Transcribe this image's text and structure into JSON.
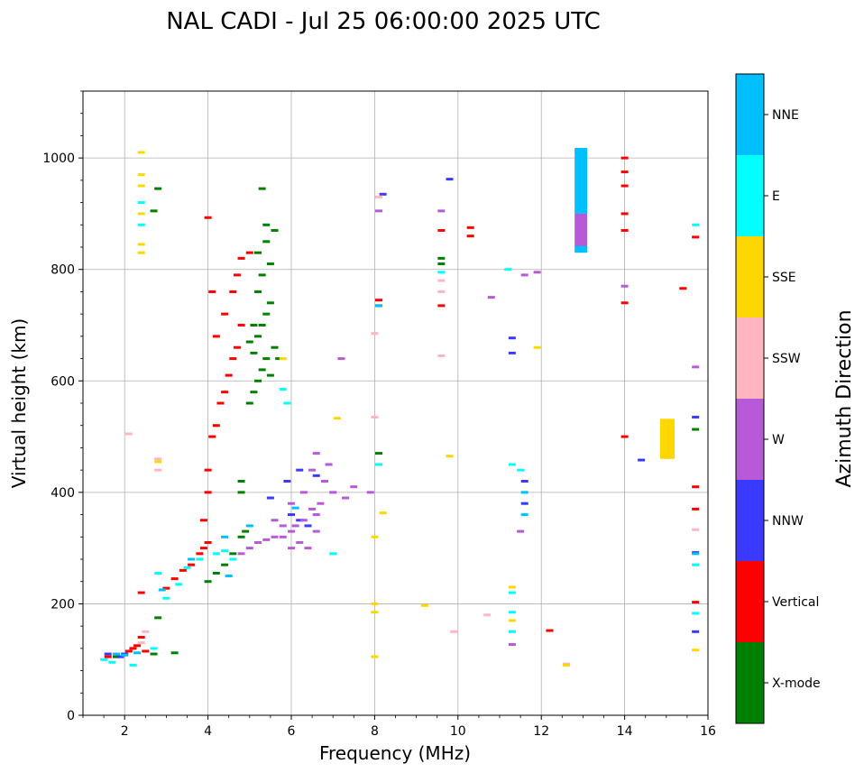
{
  "chart_data": {
    "type": "scatter",
    "title": "NAL CADI - Jul 25 06:00:00 2025 UTC",
    "xlabel": "Frequency (MHz)",
    "ylabel": "Virtual height (km)",
    "xlim": [
      1,
      16
    ],
    "ylim": [
      0,
      1120
    ],
    "xticks": [
      2,
      4,
      6,
      8,
      10,
      12,
      14,
      16
    ],
    "yticks": [
      0,
      200,
      400,
      600,
      800,
      1000
    ],
    "grid": true,
    "colorbar": {
      "title": "Azimuth Direction",
      "categories": [
        {
          "name": "X-mode",
          "color": "#008000"
        },
        {
          "name": "Vertical",
          "color": "#ff0000"
        },
        {
          "name": "NNW",
          "color": "#3a3aff"
        },
        {
          "name": "W",
          "color": "#b65ad8"
        },
        {
          "name": "SSW",
          "color": "#ffb6c1"
        },
        {
          "name": "SSE",
          "color": "#ffd700"
        },
        {
          "name": "E",
          "color": "#00ffff"
        },
        {
          "name": "NNE",
          "color": "#00bfff"
        }
      ]
    },
    "series": [
      {
        "name": "X-mode",
        "points": [
          [
            1.8,
            105
          ],
          [
            2.7,
            110
          ],
          [
            2.8,
            175
          ],
          [
            3.2,
            112
          ],
          [
            4.0,
            240
          ],
          [
            4.2,
            255
          ],
          [
            4.4,
            270
          ],
          [
            4.6,
            290
          ],
          [
            4.8,
            320
          ],
          [
            4.9,
            330
          ],
          [
            4.8,
            400
          ],
          [
            4.8,
            420
          ],
          [
            5.0,
            560
          ],
          [
            5.1,
            580
          ],
          [
            5.2,
            600
          ],
          [
            5.3,
            620
          ],
          [
            5.4,
            640
          ],
          [
            5.1,
            650
          ],
          [
            5.2,
            680
          ],
          [
            5.3,
            700
          ],
          [
            5.4,
            720
          ],
          [
            5.5,
            740
          ],
          [
            5.2,
            760
          ],
          [
            5.3,
            790
          ],
          [
            5.5,
            810
          ],
          [
            5.2,
            830
          ],
          [
            5.4,
            850
          ],
          [
            5.6,
            870
          ],
          [
            5.4,
            880
          ],
          [
            5.3,
            945
          ],
          [
            5.0,
            670
          ],
          [
            5.6,
            660
          ],
          [
            5.1,
            700
          ],
          [
            5.5,
            610
          ],
          [
            5.7,
            640
          ],
          [
            2.7,
            905
          ],
          [
            2.8,
            945
          ],
          [
            8.1,
            470
          ],
          [
            9.6,
            810
          ],
          [
            9.6,
            820
          ],
          [
            15.7,
            513
          ]
        ]
      },
      {
        "name": "Vertical",
        "points": [
          [
            1.6,
            105
          ],
          [
            2.1,
            115
          ],
          [
            2.2,
            120
          ],
          [
            2.3,
            125
          ],
          [
            2.4,
            220
          ],
          [
            2.5,
            115
          ],
          [
            3.0,
            228
          ],
          [
            3.2,
            245
          ],
          [
            3.4,
            260
          ],
          [
            3.6,
            270
          ],
          [
            3.8,
            290
          ],
          [
            3.9,
            300
          ],
          [
            4.0,
            310
          ],
          [
            3.9,
            350
          ],
          [
            4.0,
            400
          ],
          [
            4.0,
            440
          ],
          [
            4.1,
            500
          ],
          [
            4.2,
            520
          ],
          [
            4.3,
            560
          ],
          [
            4.4,
            580
          ],
          [
            4.5,
            610
          ],
          [
            4.6,
            640
          ],
          [
            4.7,
            660
          ],
          [
            4.8,
            700
          ],
          [
            4.2,
            680
          ],
          [
            4.4,
            720
          ],
          [
            4.6,
            760
          ],
          [
            4.1,
            760
          ],
          [
            4.7,
            790
          ],
          [
            4.8,
            820
          ],
          [
            5.0,
            830
          ],
          [
            4.0,
            893
          ],
          [
            2.4,
            140
          ],
          [
            8.1,
            745
          ],
          [
            8.1,
            735
          ],
          [
            9.6,
            870
          ],
          [
            9.6,
            735
          ],
          [
            10.3,
            860
          ],
          [
            10.3,
            875
          ],
          [
            12.2,
            152
          ],
          [
            14.0,
            975
          ],
          [
            14.0,
            1000
          ],
          [
            14.0,
            950
          ],
          [
            14.0,
            900
          ],
          [
            14.0,
            870
          ],
          [
            14.0,
            740
          ],
          [
            14.0,
            500
          ],
          [
            15.7,
            410
          ],
          [
            15.7,
            370
          ],
          [
            15.7,
            203
          ],
          [
            15.7,
            858
          ],
          [
            15.4,
            766
          ]
        ]
      },
      {
        "name": "NNW",
        "points": [
          [
            1.6,
            110
          ],
          [
            1.9,
            105
          ],
          [
            2.0,
            110
          ],
          [
            5.5,
            390
          ],
          [
            5.9,
            420
          ],
          [
            6.0,
            360
          ],
          [
            6.2,
            350
          ],
          [
            6.4,
            340
          ],
          [
            6.6,
            430
          ],
          [
            6.2,
            440
          ],
          [
            8.2,
            935
          ],
          [
            9.8,
            962
          ],
          [
            11.3,
            677
          ],
          [
            11.3,
            650
          ],
          [
            11.6,
            420
          ],
          [
            11.6,
            380
          ],
          [
            14.4,
            458
          ],
          [
            15.7,
            535
          ],
          [
            15.7,
            292
          ],
          [
            15.7,
            150
          ]
        ]
      },
      {
        "name": "W",
        "points": [
          [
            4.8,
            290
          ],
          [
            5.0,
            300
          ],
          [
            5.2,
            310
          ],
          [
            5.4,
            315
          ],
          [
            5.6,
            320
          ],
          [
            5.8,
            320
          ],
          [
            6.0,
            330
          ],
          [
            6.1,
            340
          ],
          [
            6.3,
            350
          ],
          [
            6.5,
            370
          ],
          [
            6.7,
            380
          ],
          [
            6.8,
            420
          ],
          [
            6.9,
            450
          ],
          [
            6.6,
            470
          ],
          [
            6.5,
            440
          ],
          [
            6.3,
            400
          ],
          [
            6.0,
            380
          ],
          [
            5.8,
            340
          ],
          [
            6.2,
            310
          ],
          [
            6.4,
            300
          ],
          [
            6.6,
            330
          ],
          [
            7.0,
            400
          ],
          [
            7.3,
            390
          ],
          [
            7.5,
            410
          ],
          [
            7.9,
            400
          ],
          [
            7.2,
            640
          ],
          [
            8.1,
            905
          ],
          [
            9.6,
            905
          ],
          [
            10.8,
            750
          ],
          [
            11.3,
            127
          ],
          [
            11.5,
            330
          ],
          [
            11.6,
            790
          ],
          [
            11.9,
            795
          ],
          [
            14.0,
            770
          ],
          [
            15.7,
            625
          ],
          [
            6.6,
            360
          ],
          [
            6.0,
            300
          ],
          [
            5.6,
            350
          ]
        ]
      },
      {
        "name": "SSW",
        "points": [
          [
            2.1,
            505
          ],
          [
            2.4,
            130
          ],
          [
            2.5,
            150
          ],
          [
            2.8,
            440
          ],
          [
            2.8,
            460
          ],
          [
            8.0,
            685
          ],
          [
            8.0,
            535
          ],
          [
            8.1,
            930
          ],
          [
            9.6,
            645
          ],
          [
            9.6,
            780
          ],
          [
            9.6,
            760
          ],
          [
            9.9,
            150
          ],
          [
            10.7,
            180
          ],
          [
            12.6,
            92
          ],
          [
            15.7,
            333
          ]
        ]
      },
      {
        "name": "SSE",
        "points": [
          [
            2.4,
            830
          ],
          [
            2.4,
            845
          ],
          [
            2.4,
            900
          ],
          [
            2.4,
            950
          ],
          [
            2.4,
            970
          ],
          [
            2.4,
            1010
          ],
          [
            2.8,
            455
          ],
          [
            5.8,
            640
          ],
          [
            7.1,
            533
          ],
          [
            8.0,
            320
          ],
          [
            8.0,
            200
          ],
          [
            8.0,
            185
          ],
          [
            8.0,
            105
          ],
          [
            8.2,
            363
          ],
          [
            9.2,
            197
          ],
          [
            9.8,
            465
          ],
          [
            11.3,
            170
          ],
          [
            11.3,
            230
          ],
          [
            11.9,
            660
          ],
          [
            12.6,
            90
          ],
          [
            15.7,
            117
          ]
        ]
      },
      {
        "name": "E",
        "points": [
          [
            1.5,
            100
          ],
          [
            1.7,
            95
          ],
          [
            2.2,
            90
          ],
          [
            2.7,
            120
          ],
          [
            2.8,
            255
          ],
          [
            3.0,
            210
          ],
          [
            3.3,
            235
          ],
          [
            3.5,
            265
          ],
          [
            3.8,
            280
          ],
          [
            4.2,
            290
          ],
          [
            4.4,
            295
          ],
          [
            4.6,
            280
          ],
          [
            5.8,
            585
          ],
          [
            5.9,
            560
          ],
          [
            7.0,
            290
          ],
          [
            8.1,
            450
          ],
          [
            9.6,
            795
          ],
          [
            11.2,
            800
          ],
          [
            11.3,
            150
          ],
          [
            11.3,
            185
          ],
          [
            11.3,
            220
          ],
          [
            11.3,
            450
          ],
          [
            11.5,
            440
          ],
          [
            15.7,
            880
          ],
          [
            15.7,
            270
          ],
          [
            15.7,
            183
          ],
          [
            2.4,
            880
          ],
          [
            2.4,
            920
          ]
        ]
      },
      {
        "name": "NNE",
        "points": [
          [
            1.8,
            110
          ],
          [
            2.0,
            108
          ],
          [
            2.3,
            112
          ],
          [
            2.9,
            225
          ],
          [
            3.6,
            280
          ],
          [
            4.4,
            320
          ],
          [
            4.5,
            250
          ],
          [
            5.0,
            340
          ],
          [
            6.1,
            372
          ],
          [
            8.1,
            735
          ],
          [
            11.6,
            400
          ],
          [
            11.6,
            360
          ],
          [
            15.7,
            290
          ]
        ]
      }
    ],
    "bars": [
      {
        "name": "NNE",
        "x_range": [
          12.8,
          13.1
        ],
        "y_range": [
          900,
          1018
        ]
      },
      {
        "name": "W",
        "x_range": [
          12.8,
          13.1
        ],
        "y_range": [
          840,
          900
        ]
      },
      {
        "name": "NNE",
        "x_range": [
          12.8,
          13.1
        ],
        "y_range": [
          830,
          842
        ]
      },
      {
        "name": "SSE",
        "x_range": [
          14.85,
          15.2
        ],
        "y_range": [
          460,
          532
        ]
      }
    ]
  }
}
